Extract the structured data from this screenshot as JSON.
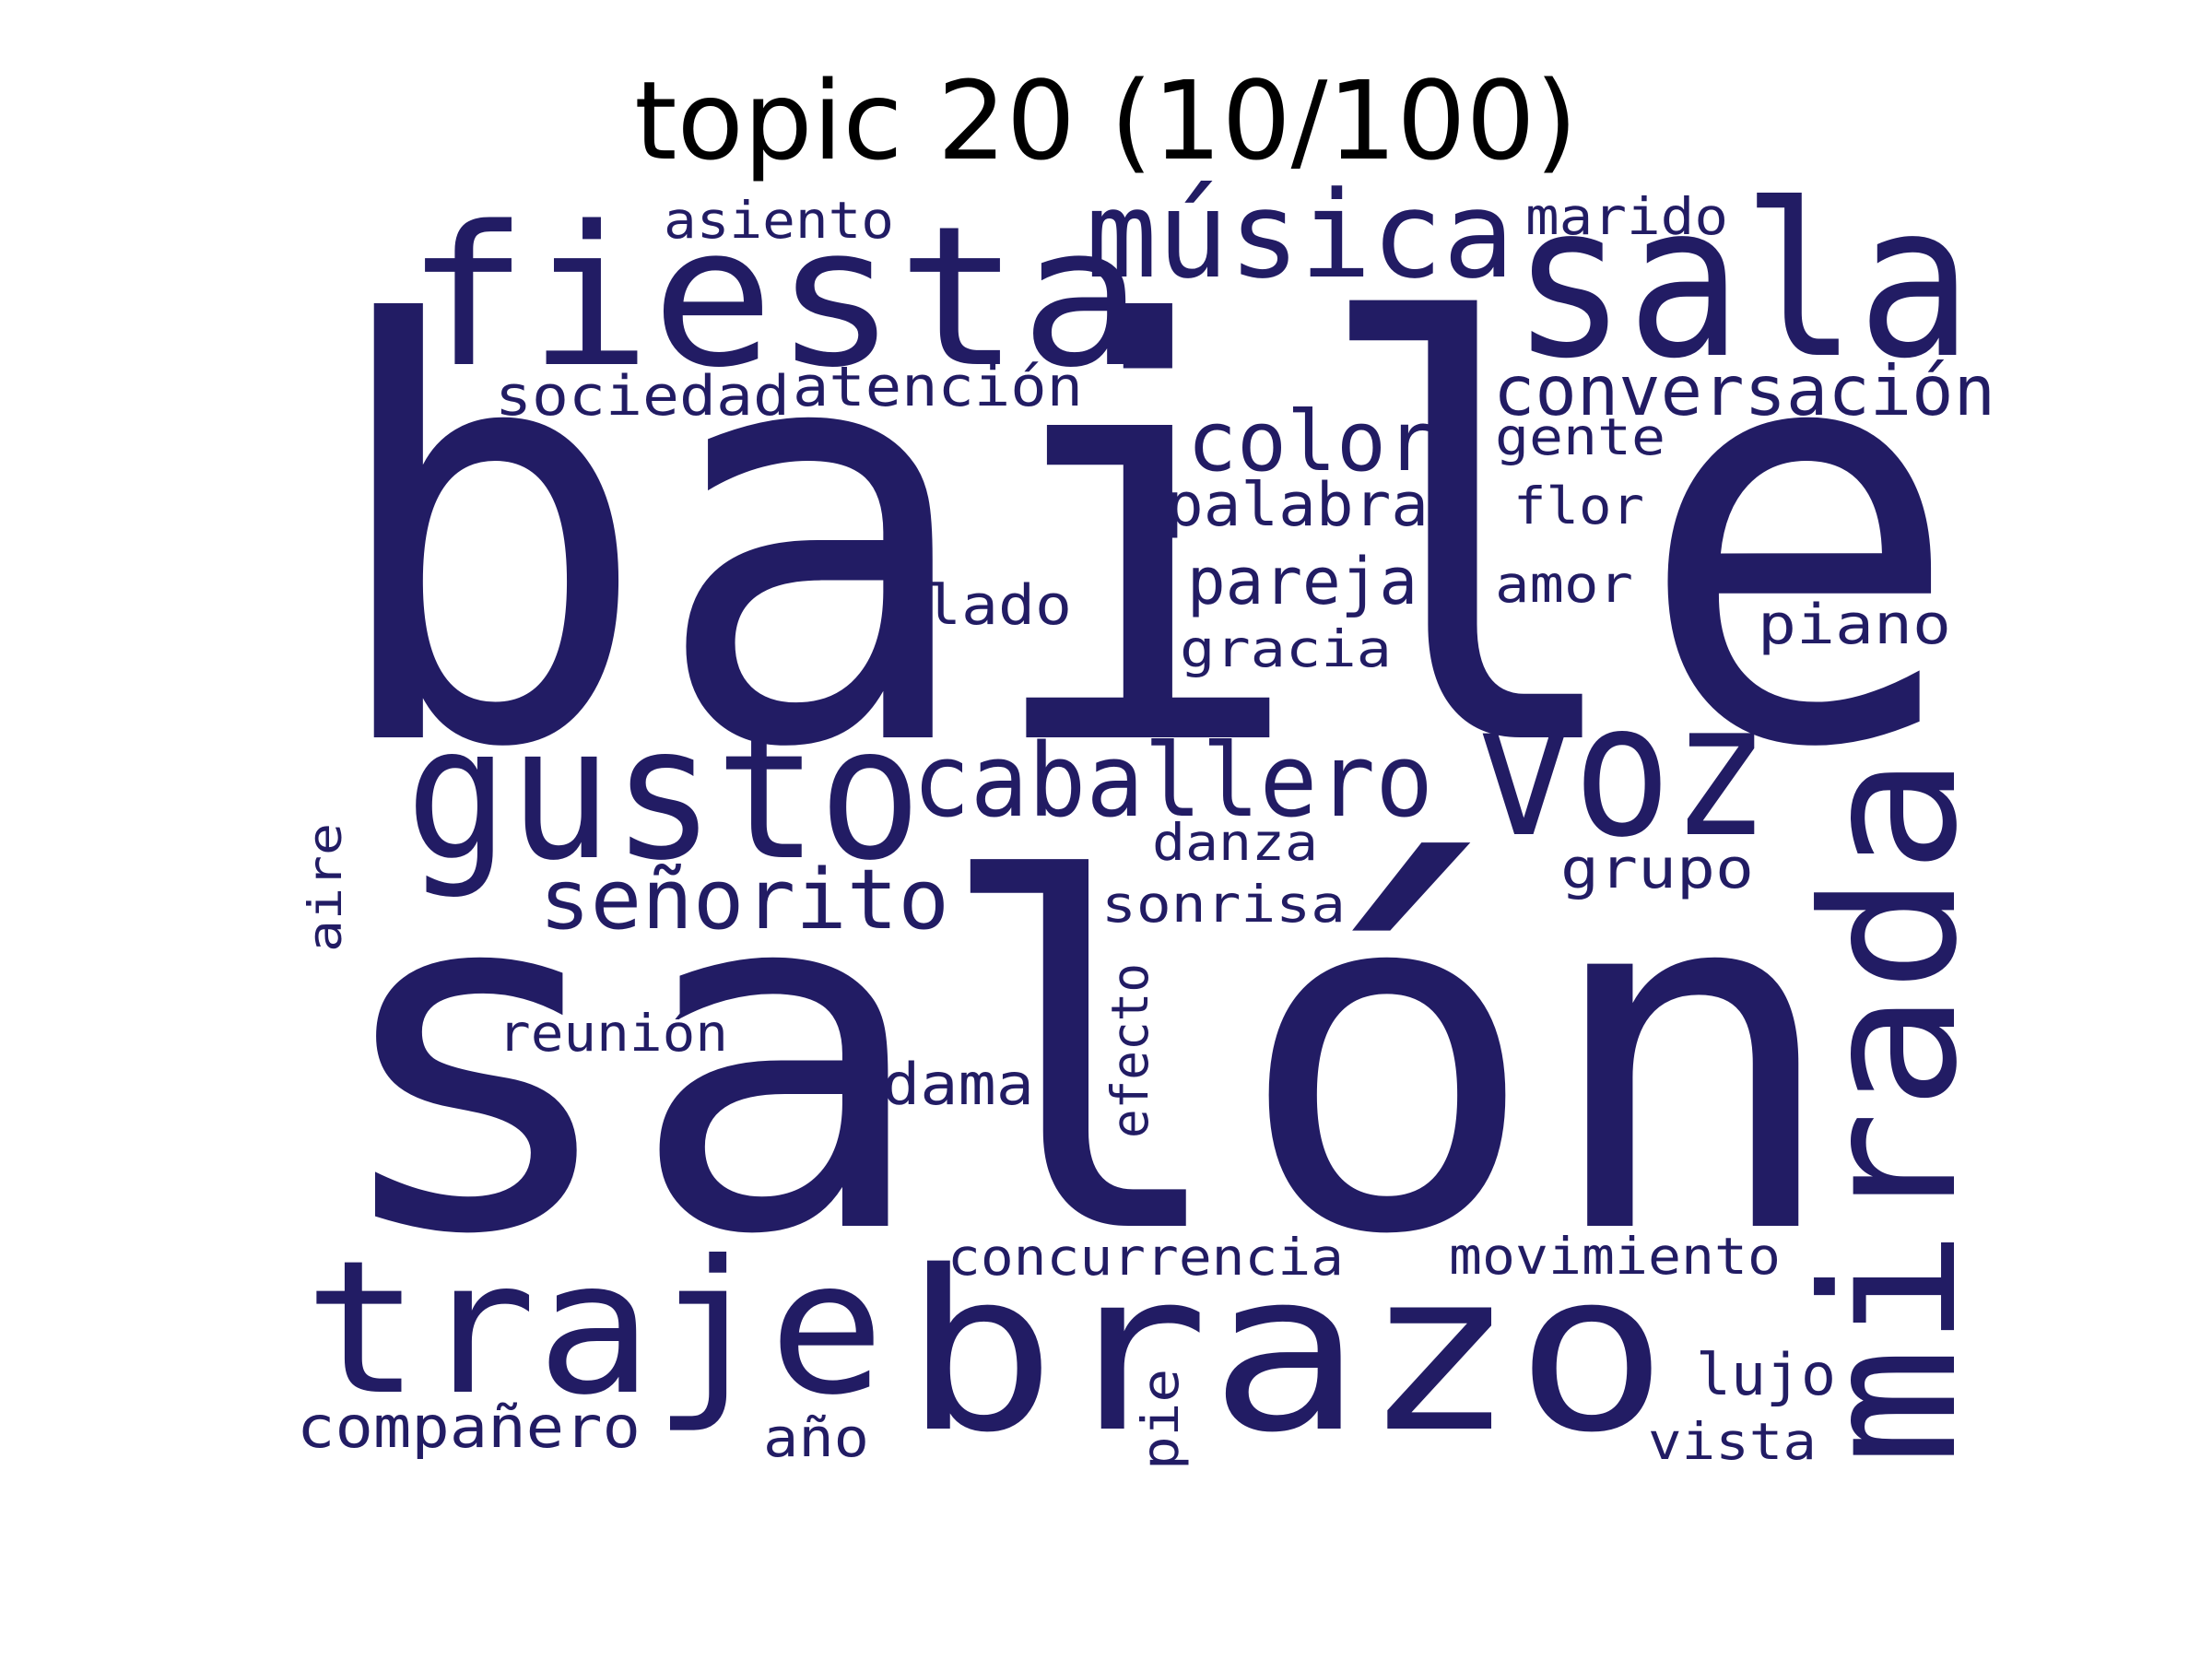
{
  "title": "topic 20 (10/100)",
  "word_color": "#221c64",
  "title_color": "#000000",
  "words": [
    {
      "text": "baile",
      "rotated": false
    },
    {
      "text": "salón",
      "rotated": false
    },
    {
      "text": "fiesta",
      "rotated": false
    },
    {
      "text": "sala",
      "rotated": false
    },
    {
      "text": "música",
      "rotated": false
    },
    {
      "text": "gusto",
      "rotated": false
    },
    {
      "text": "voz",
      "rotated": false
    },
    {
      "text": "mirada",
      "rotated": true
    },
    {
      "text": "traje",
      "rotated": false
    },
    {
      "text": "brazo",
      "rotated": false
    },
    {
      "text": "caballero",
      "rotated": false
    },
    {
      "text": "señorito",
      "rotated": false
    },
    {
      "text": "color",
      "rotated": false
    },
    {
      "text": "conversación",
      "rotated": false
    },
    {
      "text": "palabra",
      "rotated": false
    },
    {
      "text": "pareja",
      "rotated": false
    },
    {
      "text": "sociedad",
      "rotated": false
    },
    {
      "text": "atención",
      "rotated": false
    },
    {
      "text": "asiento",
      "rotated": false
    },
    {
      "text": "marido",
      "rotated": false
    },
    {
      "text": "gente",
      "rotated": false
    },
    {
      "text": "flor",
      "rotated": false
    },
    {
      "text": "amor",
      "rotated": false
    },
    {
      "text": "lado",
      "rotated": false
    },
    {
      "text": "piano",
      "rotated": false
    },
    {
      "text": "gracia",
      "rotated": false
    },
    {
      "text": "danza",
      "rotated": false
    },
    {
      "text": "grupo",
      "rotated": false
    },
    {
      "text": "sonrisa",
      "rotated": false
    },
    {
      "text": "aire",
      "rotated": true
    },
    {
      "text": "efecto",
      "rotated": true
    },
    {
      "text": "reunión",
      "rotated": false
    },
    {
      "text": "dama",
      "rotated": false
    },
    {
      "text": "concurrencia",
      "rotated": false
    },
    {
      "text": "movimiento",
      "rotated": false
    },
    {
      "text": "lujo",
      "rotated": false
    },
    {
      "text": "compañero",
      "rotated": false
    },
    {
      "text": "año",
      "rotated": false
    },
    {
      "text": "pie",
      "rotated": true
    },
    {
      "text": "vista",
      "rotated": false
    }
  ]
}
